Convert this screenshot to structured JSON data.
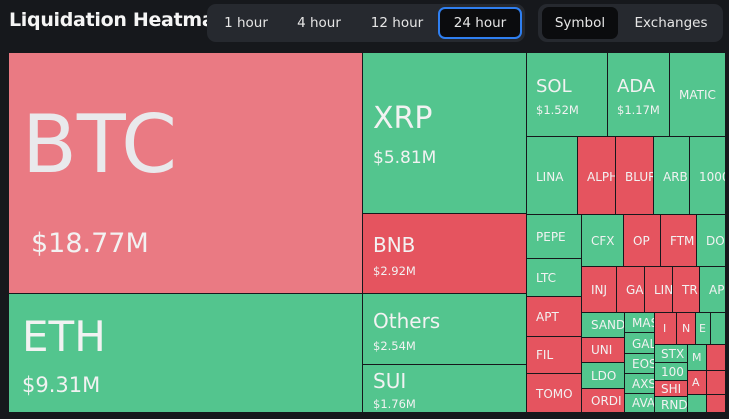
{
  "header": {
    "title": "Liquidation Heatmap"
  },
  "time_filter": {
    "options": [
      {
        "label": "1 hour",
        "active": false
      },
      {
        "label": "4 hour",
        "active": false
      },
      {
        "label": "12 hour",
        "active": false
      },
      {
        "label": "24 hour",
        "active": true
      }
    ]
  },
  "view_toggle": {
    "options": [
      {
        "label": "Symbol",
        "active": true
      },
      {
        "label": "Exchanges",
        "active": false
      }
    ]
  },
  "colors": {
    "long_liquidation_green": "#53c58e",
    "short_liquidation_red": "#e5545f",
    "btc_pink": "#ea7a83",
    "active_border_blue": "#2f7ff0"
  },
  "tiles": {
    "btc": {
      "symbol": "BTC",
      "value": "$18.77M"
    },
    "eth": {
      "symbol": "ETH",
      "value": "$9.31M"
    },
    "xrp": {
      "symbol": "XRP",
      "value": "$5.81M"
    },
    "bnb": {
      "symbol": "BNB",
      "value": "$2.92M"
    },
    "others": {
      "symbol": "Others",
      "value": "$2.54M"
    },
    "sui": {
      "symbol": "SUI",
      "value": "$1.76M"
    },
    "sol": {
      "symbol": "SOL",
      "value": "$1.52M"
    },
    "ada": {
      "symbol": "ADA",
      "value": "$1.17M"
    },
    "matic": {
      "symbol": "MATIC"
    },
    "lina": {
      "symbol": "LINA"
    },
    "alph": {
      "symbol": "ALPH"
    },
    "blur": {
      "symbol": "BLUR"
    },
    "arb": {
      "symbol": "ARB"
    },
    "1000": {
      "symbol": "1000"
    },
    "pepe": {
      "symbol": "PEPE"
    },
    "cfx": {
      "symbol": "CFX"
    },
    "op": {
      "symbol": "OP"
    },
    "ftm": {
      "symbol": "FTM"
    },
    "do": {
      "symbol": "DO"
    },
    "ltc": {
      "symbol": "LTC"
    },
    "inj": {
      "symbol": "INJ"
    },
    "ga": {
      "symbol": "GA"
    },
    "lin": {
      "symbol": "LIN"
    },
    "tr": {
      "symbol": "TR"
    },
    "ap": {
      "symbol": "AP"
    },
    "apt": {
      "symbol": "APT"
    },
    "sand": {
      "symbol": "SAND"
    },
    "mas": {
      "symbol": "MAS"
    },
    "i": {
      "symbol": "I"
    },
    "n": {
      "symbol": "N"
    },
    "e": {
      "symbol": "E"
    },
    "fil": {
      "symbol": "FIL"
    },
    "uni": {
      "symbol": "UNI"
    },
    "gal": {
      "symbol": "GAL"
    },
    "stx": {
      "symbol": "STX"
    },
    "m": {
      "symbol": "M"
    },
    "eos": {
      "symbol": "EOS"
    },
    "100": {
      "symbol": "100"
    },
    "ldo": {
      "symbol": "LDO"
    },
    "axs": {
      "symbol": "AXS"
    },
    "shi": {
      "symbol": "SHI"
    },
    "a": {
      "symbol": "A"
    },
    "tomo": {
      "symbol": "TOMO"
    },
    "ordi": {
      "symbol": "ORDI"
    },
    "ava": {
      "symbol": "AVA"
    },
    "rnd": {
      "symbol": "RND"
    }
  }
}
